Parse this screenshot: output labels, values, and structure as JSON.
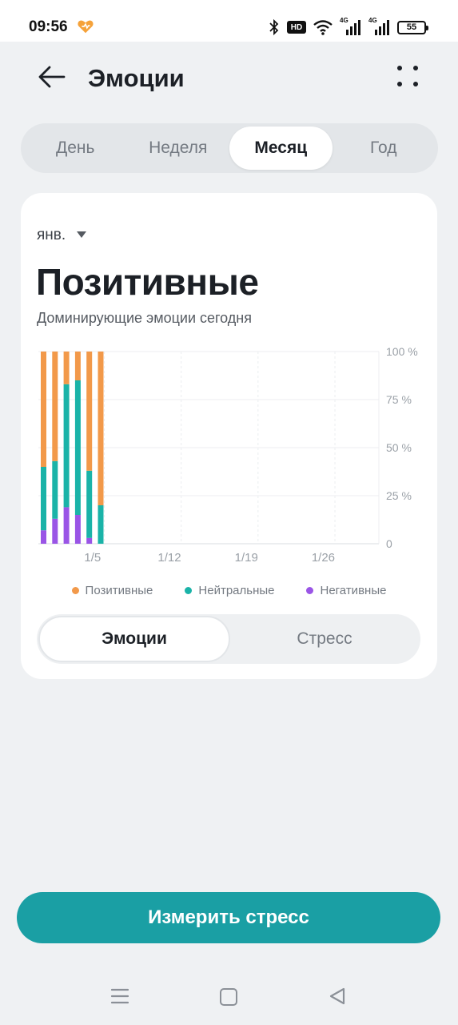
{
  "status": {
    "time": "09:56",
    "hd_badge": "HD",
    "network_1": "4G",
    "network_2": "4G",
    "battery": "55",
    "icons": [
      "app-heart-icon",
      "bluetooth-icon",
      "hd-icon",
      "wifi-icon",
      "signal-icon",
      "battery-icon"
    ]
  },
  "header": {
    "title": "Эмоции",
    "icons": [
      "arrow-left-icon",
      "more-dots-icon"
    ]
  },
  "period_tabs": [
    {
      "label": "День",
      "active": false
    },
    {
      "label": "Неделя",
      "active": false
    },
    {
      "label": "Месяц",
      "active": true
    },
    {
      "label": "Год",
      "active": false
    }
  ],
  "card": {
    "month": "янв.",
    "headline": "Позитивные",
    "subheadline": "Доминирующие эмоции сегодня"
  },
  "chart_data": {
    "type": "bar",
    "stacked": true,
    "x_ticks": [
      "1/5",
      "1/12",
      "1/19",
      "1/26"
    ],
    "y_ticks": [
      "100 %",
      "75 %",
      "50 %",
      "25 %",
      "0"
    ],
    "ylim": [
      0,
      100
    ],
    "y_axis_side": "right",
    "grid": true,
    "legend_position": "bottom",
    "days": [
      1,
      2,
      3,
      4,
      5,
      6
    ],
    "series": [
      {
        "name": "Негативные",
        "color": "#9a55e6",
        "values": [
          7,
          13,
          19,
          15,
          3,
          0
        ]
      },
      {
        "name": "Нейтральные",
        "color": "#1ab3a8",
        "values": [
          33,
          30,
          64,
          70,
          35,
          20
        ]
      },
      {
        "name": "Позитивные",
        "color": "#f2994a",
        "values": [
          60,
          57,
          17,
          15,
          62,
          80
        ]
      }
    ]
  },
  "legend": [
    {
      "label": "Позитивные",
      "color": "#f2994a"
    },
    {
      "label": "Нейтральные",
      "color": "#1ab3a8"
    },
    {
      "label": "Негативные",
      "color": "#9a55e6"
    }
  ],
  "mode_tabs": [
    {
      "label": "Эмоции",
      "active": true
    },
    {
      "label": "Стресс",
      "active": false
    }
  ],
  "measure_button": {
    "label": "Измерить стресс",
    "color": "#1a9fa4"
  },
  "nav": {
    "icons": [
      "menu-icon",
      "home-square-icon",
      "back-triangle-icon"
    ]
  }
}
